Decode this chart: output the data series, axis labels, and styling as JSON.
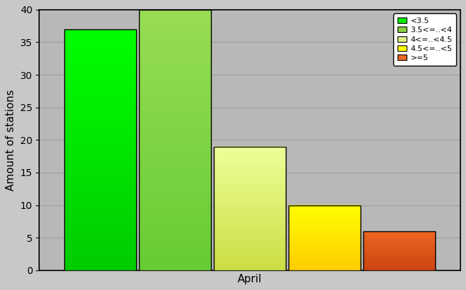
{
  "bars": [
    {
      "label": "<3.5",
      "value": 37,
      "color_top": "#00ff00",
      "color_bottom": "#00cc00"
    },
    {
      "label": "3.5<=..<4",
      "value": 40,
      "color_top": "#99dd55",
      "color_bottom": "#66cc33"
    },
    {
      "label": "4<=..<4.5",
      "value": 19,
      "color_top": "#eeff99",
      "color_bottom": "#ccdd44"
    },
    {
      "label": "4.5<=..<5",
      "value": 10,
      "color_top": "#ffff00",
      "color_bottom": "#ffcc00"
    },
    {
      "label": ">=5",
      "value": 6,
      "color_top": "#ee6622",
      "color_bottom": "#cc4411"
    }
  ],
  "legend_colors": [
    "#00ee00",
    "#88cc44",
    "#ddee88",
    "#ffff00",
    "#ee6622"
  ],
  "xlabel": "April",
  "ylabel": "Amount of stations",
  "ylim": [
    0,
    40
  ],
  "yticks": [
    0,
    5,
    10,
    15,
    20,
    25,
    30,
    35,
    40
  ],
  "background_color": "#c8c8c8",
  "plot_bg_color": "#b8b8b8",
  "grid_color": "#a0a0a0"
}
